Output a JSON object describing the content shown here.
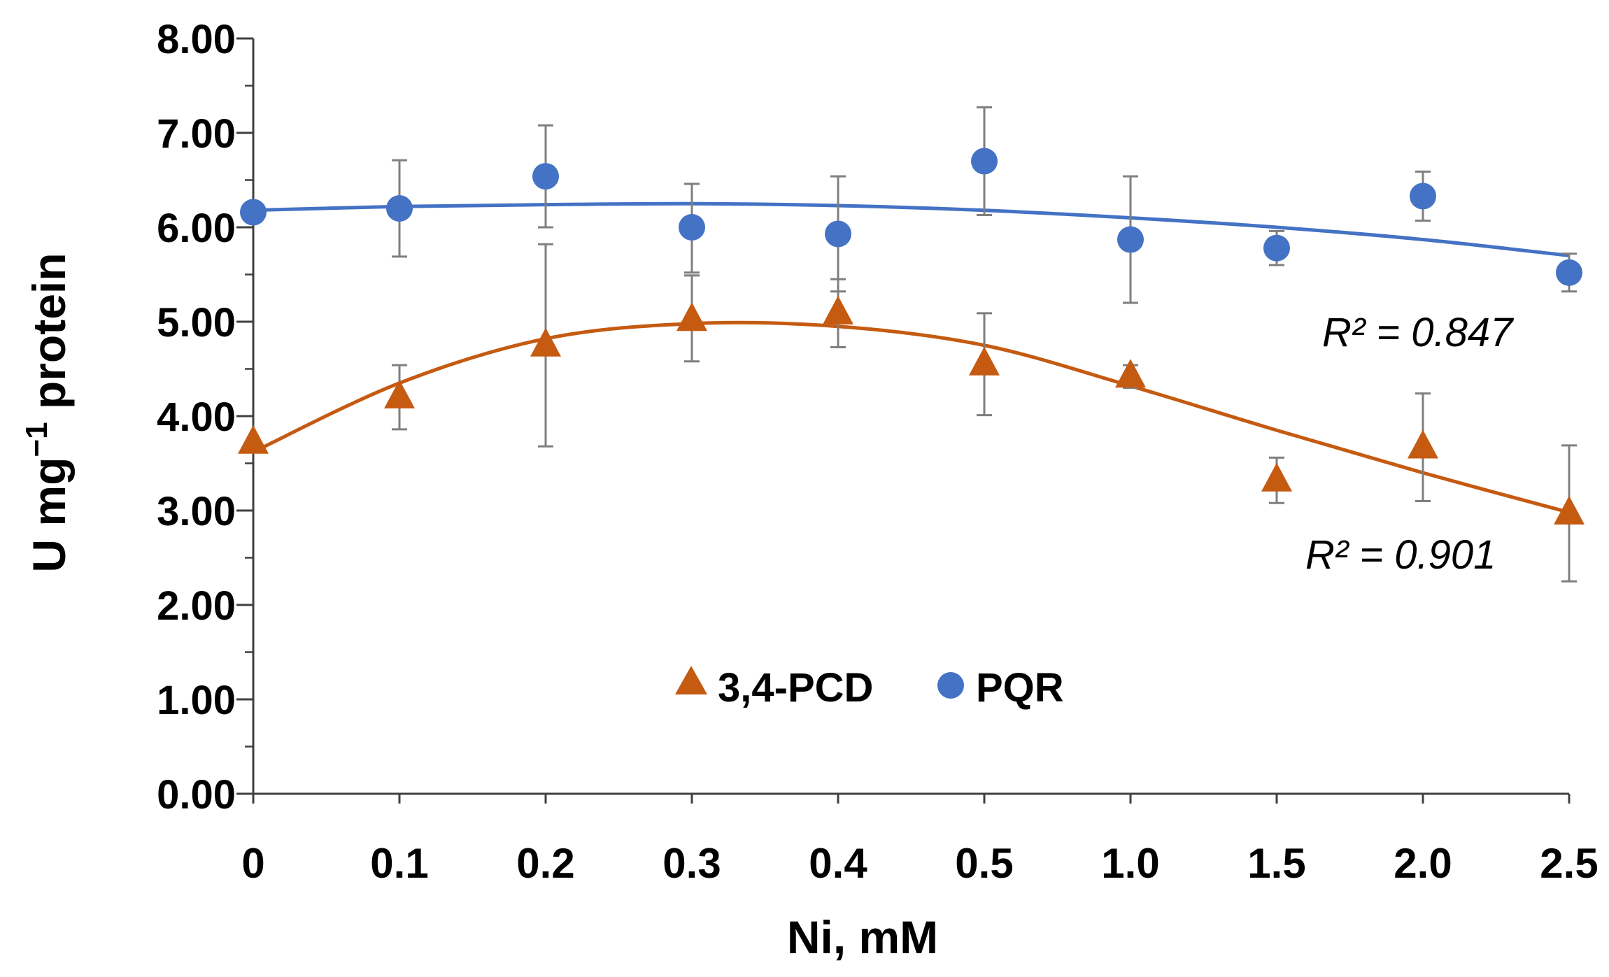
{
  "chart_data": {
    "type": "scatter",
    "xlabel": "Ni, mM",
    "ylabel": {
      "main": "U mg",
      "sup": "−1",
      "rest": " protein"
    },
    "categories": [
      "0",
      "0.1",
      "0.2",
      "0.3",
      "0.4",
      "0.5",
      "1.0",
      "1.5",
      "2.0",
      "2.5"
    ],
    "ylim": [
      0,
      8
    ],
    "yticks": [
      "0.00",
      "1.00",
      "2.00",
      "3.00",
      "4.00",
      "5.00",
      "6.00",
      "7.00",
      "8.00"
    ],
    "grid": false,
    "legend_position": "bottom-center",
    "series": [
      {
        "name": "3,4-PCD",
        "marker": "triangle",
        "color": "#C55A11",
        "values": [
          3.72,
          4.2,
          4.75,
          5.02,
          5.09,
          4.55,
          4.42,
          3.32,
          3.67,
          2.97
        ],
        "err_low": [
          3.72,
          3.86,
          3.68,
          4.58,
          4.73,
          4.01,
          4.3,
          3.08,
          3.1,
          2.25
        ],
        "err_high": [
          3.72,
          4.54,
          5.82,
          5.49,
          5.45,
          5.09,
          4.54,
          3.56,
          4.24,
          3.69
        ],
        "trend": [
          3.62,
          4.35,
          4.82,
          4.98,
          4.95,
          4.75,
          4.32,
          3.85,
          3.4,
          2.98
        ],
        "r2_label": "R² = 0.901"
      },
      {
        "name": "PQR",
        "marker": "circle",
        "color": "#4472C4",
        "values": [
          6.16,
          6.2,
          6.54,
          6.0,
          5.93,
          6.7,
          5.87,
          5.78,
          6.33,
          5.52
        ],
        "err_low": [
          6.16,
          5.69,
          6.0,
          5.52,
          5.32,
          6.13,
          5.2,
          5.6,
          6.07,
          5.32
        ],
        "err_high": [
          6.16,
          6.71,
          7.08,
          6.46,
          6.54,
          7.27,
          6.54,
          5.96,
          6.59,
          5.72
        ],
        "trend": [
          6.18,
          6.22,
          6.24,
          6.25,
          6.23,
          6.18,
          6.1,
          6.0,
          5.87,
          5.7
        ],
        "r2_label": "R² = 0.847"
      }
    ]
  }
}
